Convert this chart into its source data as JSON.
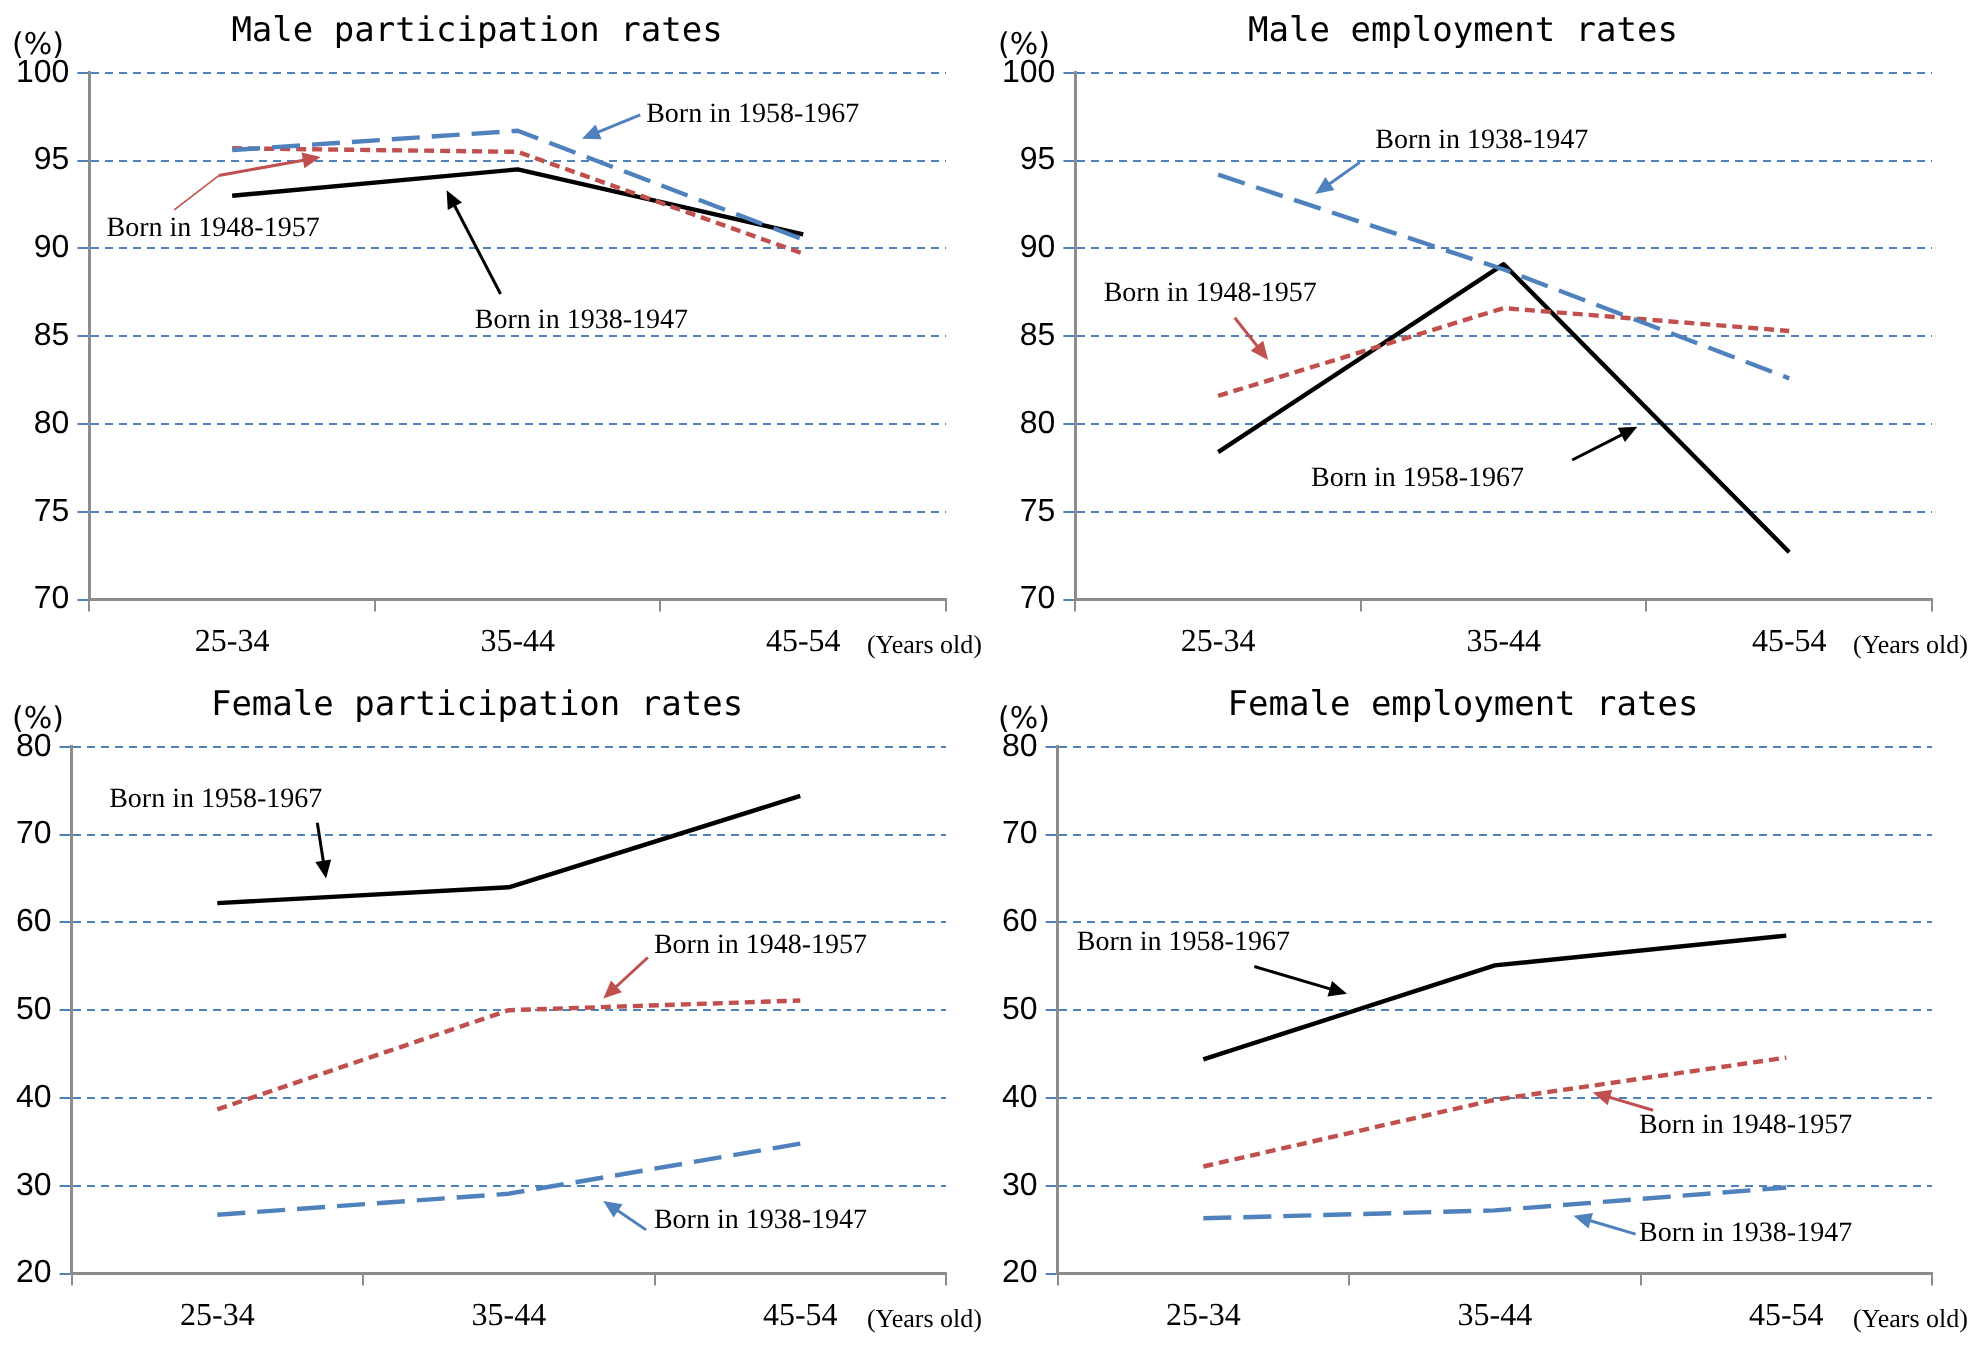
{
  "chart_data": [
    {
      "type": "line",
      "title": "Male participation rates",
      "xlabel": "(Years old)",
      "ylabel": "(%)",
      "categories": [
        "25-34",
        "35-44",
        "45-54"
      ],
      "ylim": [
        70,
        100
      ],
      "yticks": [
        70,
        75,
        80,
        85,
        90,
        95,
        100
      ],
      "grid": "y",
      "marker": "none",
      "series": [
        {
          "name": "Born in 1958-1967",
          "color": "#4f81bd",
          "line_style": "dashed",
          "values": [
            95.6,
            96.7,
            90.5
          ]
        },
        {
          "name": "Born in 1948-1957",
          "color": "#c0504d",
          "line_style": "dotted",
          "values": [
            95.7,
            95.5,
            89.7
          ]
        },
        {
          "name": "Born in 1938-1947",
          "color": "#000000",
          "line_style": "solid",
          "values": [
            93.0,
            94.5,
            90.8
          ]
        }
      ]
    },
    {
      "type": "line",
      "title": "Male employment rates",
      "xlabel": "(Years old)",
      "ylabel": "(%)",
      "categories": [
        "25-34",
        "35-44",
        "45-54"
      ],
      "ylim": [
        70,
        100
      ],
      "yticks": [
        70,
        75,
        80,
        85,
        90,
        95,
        100
      ],
      "grid": "y",
      "marker": "none",
      "series": [
        {
          "name": "Born in 1938-1947",
          "color": "#4f81bd",
          "line_style": "dashed",
          "values": [
            94.2,
            88.8,
            82.6
          ]
        },
        {
          "name": "Born in 1948-1957",
          "color": "#c0504d",
          "line_style": "dotted",
          "values": [
            81.6,
            86.6,
            85.3
          ]
        },
        {
          "name": "Born in 1958-1967",
          "color": "#000000",
          "line_style": "solid",
          "values": [
            78.4,
            89.1,
            72.7
          ]
        }
      ]
    },
    {
      "type": "line",
      "title": "Female participation rates",
      "xlabel": "(Years old)",
      "ylabel": "(%)",
      "categories": [
        "25-34",
        "35-44",
        "45-54"
      ],
      "ylim": [
        20,
        80
      ],
      "yticks": [
        20,
        30,
        40,
        50,
        60,
        70,
        80
      ],
      "grid": "y",
      "marker": "none",
      "series": [
        {
          "name": "Born in 1938-1947",
          "color": "#4f81bd",
          "line_style": "dashed",
          "values": [
            26.7,
            29.1,
            34.8
          ]
        },
        {
          "name": "Born in 1948-1957",
          "color": "#c0504d",
          "line_style": "dotted",
          "values": [
            38.7,
            50.0,
            51.1
          ]
        },
        {
          "name": "Born in 1958-1967",
          "color": "#000000",
          "line_style": "solid",
          "values": [
            62.2,
            64.0,
            74.4
          ]
        }
      ]
    },
    {
      "type": "line",
      "title": "Female employment rates",
      "xlabel": "(Years old)",
      "ylabel": "(%)",
      "categories": [
        "25-34",
        "35-44",
        "45-54"
      ],
      "ylim": [
        20,
        80
      ],
      "yticks": [
        20,
        30,
        40,
        50,
        60,
        70,
        80
      ],
      "grid": "y",
      "marker": "none",
      "series": [
        {
          "name": "Born in 1938-1947",
          "color": "#4f81bd",
          "line_style": "dashed",
          "values": [
            26.3,
            27.2,
            29.8
          ]
        },
        {
          "name": "Born in 1948-1957",
          "color": "#c0504d",
          "line_style": "dotted",
          "values": [
            32.2,
            39.8,
            44.6
          ]
        },
        {
          "name": "Born in 1958-1967",
          "color": "#000000",
          "line_style": "solid",
          "values": [
            44.4,
            55.1,
            58.5
          ]
        }
      ]
    }
  ]
}
